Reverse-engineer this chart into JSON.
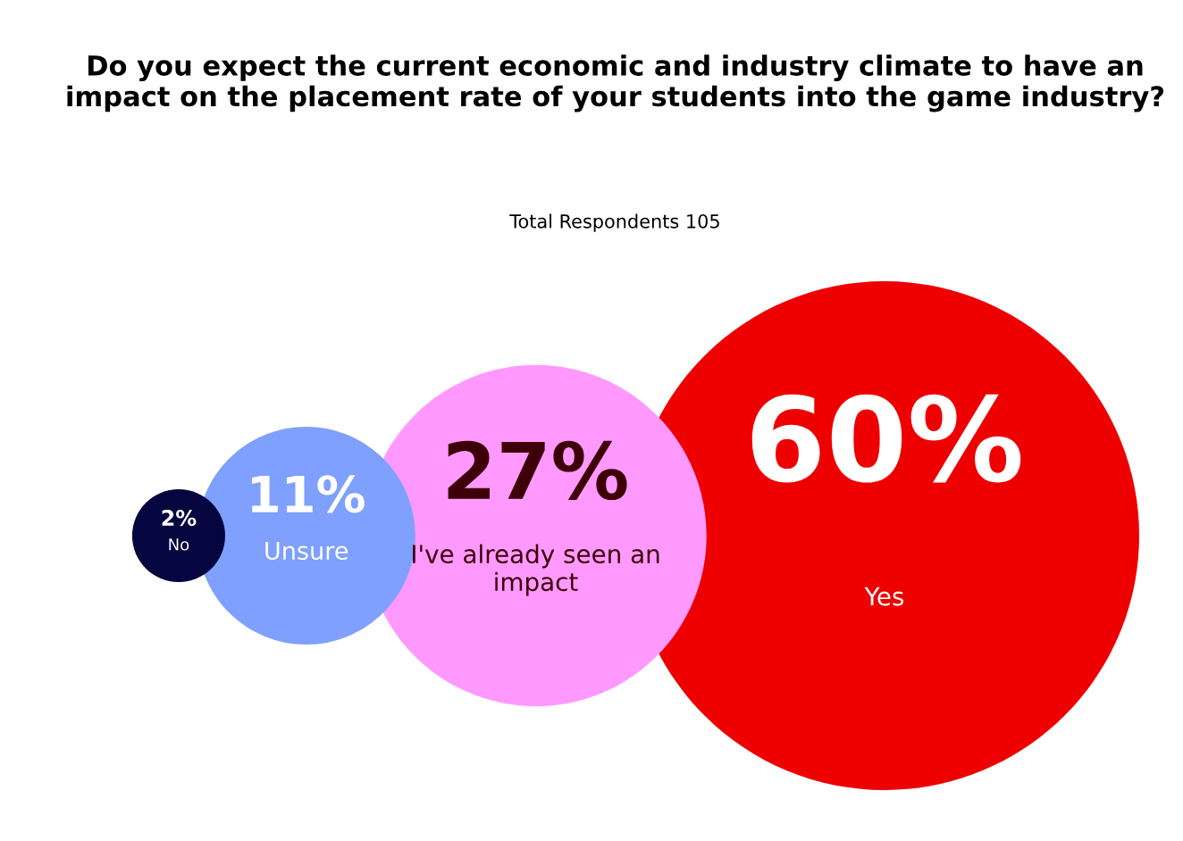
{
  "chart_data": {
    "type": "other",
    "title": "Do you expect the current economic and industry climate to have an impact on the placement rate of your students into the game industry?",
    "subtitle": "Total Respondents 105",
    "categories": [
      "No",
      "Unsure",
      "I've already seen an impact",
      "Yes"
    ],
    "values": [
      2,
      11,
      27,
      60
    ],
    "colors": [
      "#05063f",
      "#7fa0ff",
      "#ff99ff",
      "#ee0000"
    ],
    "value_labels": [
      "2%",
      "11%",
      "27%",
      "60%"
    ]
  }
}
